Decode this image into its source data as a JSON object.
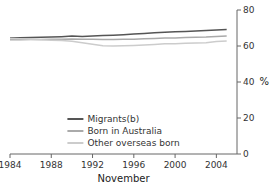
{
  "chart_data": {
    "type": "line",
    "xlabel": "November",
    "ylabel": "%",
    "x": [
      1984,
      1985,
      1986,
      1987,
      1988,
      1989,
      1990,
      1991,
      1992,
      1993,
      1994,
      1995,
      1996,
      1997,
      1998,
      1999,
      2000,
      2001,
      2002,
      2003,
      2004,
      2005
    ],
    "series": [
      {
        "name": "Migrants(b)",
        "color": "#555555",
        "values": [
          64.5,
          64.6,
          64.7,
          64.8,
          65.0,
          65.2,
          65.5,
          65.3,
          65.6,
          65.8,
          66.0,
          66.3,
          66.6,
          67.0,
          67.3,
          67.6,
          67.9,
          68.1,
          68.3,
          68.6,
          68.9,
          69.1
        ]
      },
      {
        "name": "Born in Australia",
        "color": "#aaaaaa",
        "values": [
          63.5,
          63.5,
          63.6,
          63.6,
          63.7,
          63.8,
          63.9,
          63.8,
          63.7,
          63.6,
          63.6,
          63.7,
          63.8,
          64.0,
          64.2,
          64.4,
          64.5,
          64.7,
          64.9,
          65.0,
          65.3,
          65.5
        ]
      },
      {
        "name": "Other overseas born",
        "color": "#cccccc",
        "values": [
          64.2,
          64.0,
          63.8,
          63.5,
          63.2,
          63.0,
          62.7,
          61.8,
          61.0,
          60.2,
          60.0,
          60.1,
          60.3,
          60.6,
          60.9,
          61.2,
          61.3,
          61.5,
          61.7,
          61.8,
          62.5,
          62.8
        ]
      }
    ],
    "xlim": [
      1984,
      2006
    ],
    "ylim": [
      0,
      80
    ],
    "xticks": [
      1984,
      1988,
      1992,
      1996,
      2000,
      2004
    ],
    "yticks": [
      0,
      20,
      40,
      60,
      80
    ],
    "grid": false,
    "legend": "bottom"
  }
}
